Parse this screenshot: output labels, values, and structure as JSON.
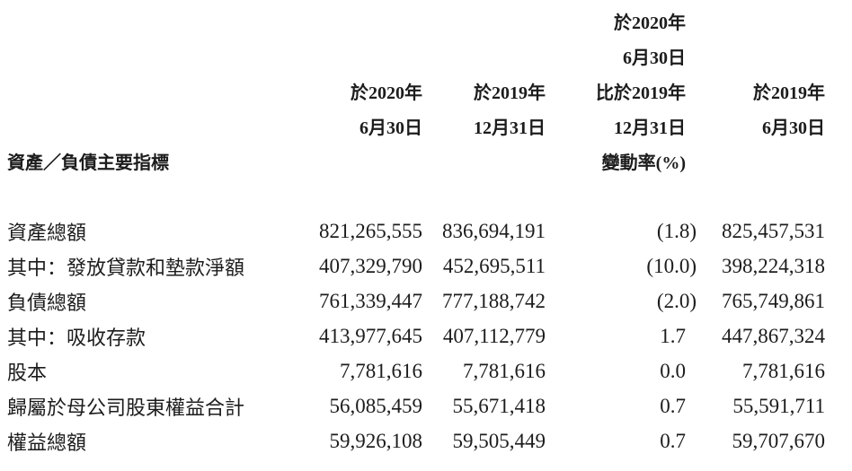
{
  "page": {
    "background_color": "#ffffff",
    "text_color": "#1c1c1c"
  },
  "table": {
    "row_label_header": "資產／負債主要指標",
    "columns": [
      {
        "id": "as_at_2020_06_30",
        "lines": [
          "於2020年",
          "6月30日"
        ]
      },
      {
        "id": "as_at_2019_12_31",
        "lines": [
          "於2019年",
          "12月31日"
        ]
      },
      {
        "id": "change_rate",
        "lines": [
          "於2020年",
          "6月30日",
          "比於2019年",
          "12月31日",
          "變動率(%)"
        ]
      },
      {
        "id": "as_at_2019_06_30",
        "lines": [
          "於2019年",
          "6月30日"
        ]
      }
    ],
    "rows": [
      {
        "label": "資產總額",
        "values": [
          "821,265,555",
          "836,694,191",
          "(1.8)",
          "825,457,531"
        ]
      },
      {
        "label": "其中：發放貸款和墊款淨額",
        "values": [
          "407,329,790",
          "452,695,511",
          "(10.0)",
          "398,224,318"
        ]
      },
      {
        "label": "負債總額",
        "values": [
          "761,339,447",
          "777,188,742",
          "(2.0)",
          "765,749,861"
        ]
      },
      {
        "label": "其中：吸收存款",
        "values": [
          "413,977,645",
          "407,112,779",
          "1.7",
          "447,867,324"
        ]
      },
      {
        "label": "股本",
        "values": [
          "7,781,616",
          "7,781,616",
          "0.0",
          "7,781,616"
        ]
      },
      {
        "label": "歸屬於母公司股東權益合計",
        "values": [
          "56,085,459",
          "55,671,418",
          "0.7",
          "55,591,711"
        ]
      },
      {
        "label": "權益總額",
        "values": [
          "59,926,108",
          "59,505,449",
          "0.7",
          "59,707,670"
        ]
      }
    ]
  }
}
